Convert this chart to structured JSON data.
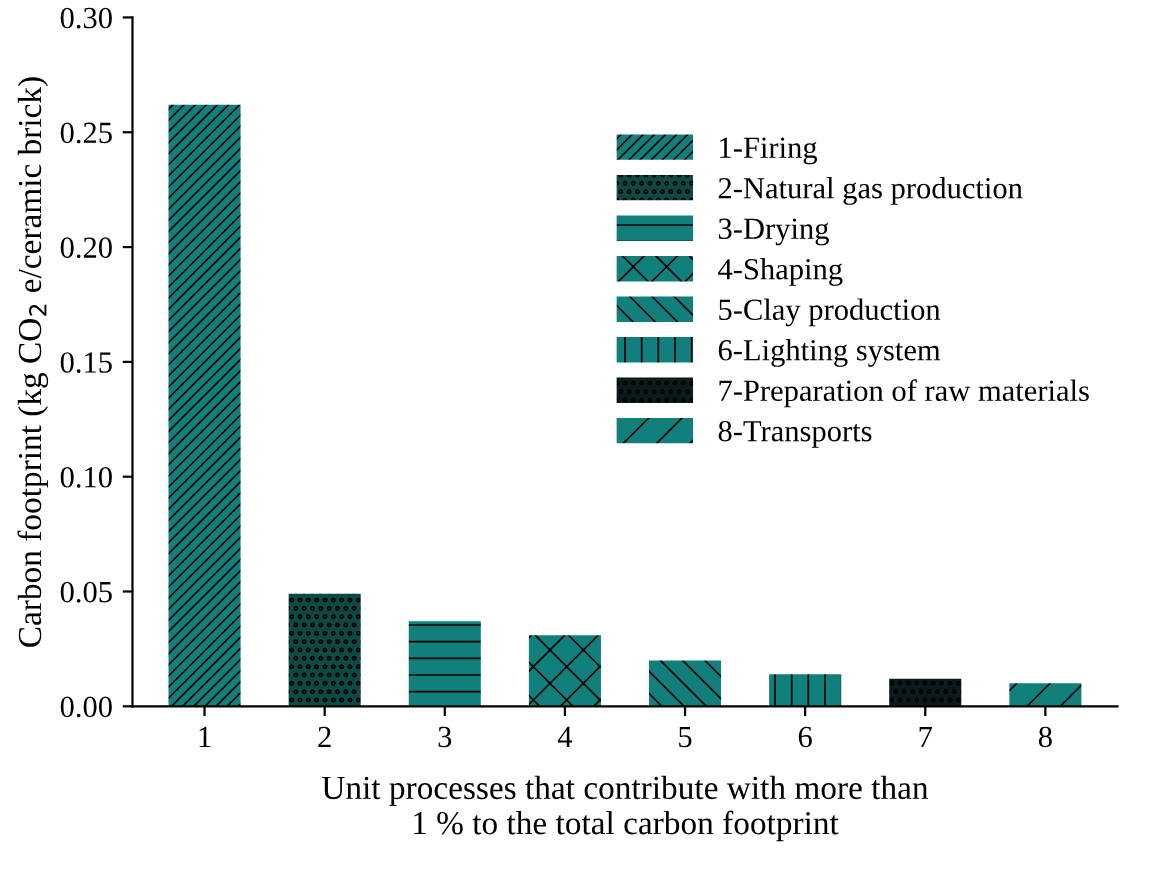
{
  "chart_data": {
    "type": "bar",
    "xlabel": "Unit processes that contribute with more than\n1 % to the total carbon footprint",
    "ylabel": "Carbon footprint (kg CO$_{2}$ e/ceramic brick)",
    "categories": [
      "1",
      "2",
      "3",
      "4",
      "5",
      "6",
      "7",
      "8"
    ],
    "series": [
      {
        "name": "1-Firing",
        "color": "#11807c",
        "values": [
          0.262,
          null,
          null,
          null,
          null,
          null,
          null,
          null
        ]
      },
      {
        "name": "2-Natural gas production",
        "color": "#0b4a48",
        "values": [
          null,
          0.049,
          null,
          null,
          null,
          null,
          null,
          null
        ]
      },
      {
        "name": "3-Drying",
        "color": "#11807c",
        "values": [
          null,
          null,
          0.037,
          null,
          null,
          null,
          null,
          null
        ]
      },
      {
        "name": "4-Shaping",
        "color": "#11807c",
        "values": [
          null,
          null,
          null,
          0.031,
          null,
          null,
          null,
          null
        ]
      },
      {
        "name": "5-Clay production",
        "color": "#11807c",
        "values": [
          null,
          null,
          null,
          null,
          0.02,
          null,
          null,
          null
        ]
      },
      {
        "name": "6-Lighting system",
        "color": "#11807c",
        "values": [
          null,
          null,
          null,
          null,
          null,
          0.014,
          null,
          null
        ]
      },
      {
        "name": "7-Preparation of raw materials",
        "color": "#0a1c1c",
        "values": [
          null,
          null,
          null,
          null,
          null,
          null,
          0.012,
          null
        ]
      },
      {
        "name": "8-Transports",
        "color": "#11807c",
        "values": [
          null,
          null,
          null,
          null,
          null,
          null,
          null,
          0.01
        ]
      }
    ],
    "ylim": [
      0,
      0.3
    ],
    "yticks": [
      {
        "value": 0,
        "label": "0.00"
      },
      {
        "value": 0.05,
        "label": "0.05"
      },
      {
        "value": 0.1,
        "label": "0.10"
      },
      {
        "value": 0.15,
        "label": "0.15"
      },
      {
        "value": 0.2,
        "label": "0.20"
      },
      {
        "value": 0.25,
        "label": "0.25"
      },
      {
        "value": 0.3,
        "label": "0.30"
      }
    ],
    "grid": false,
    "legend": "top right"
  }
}
